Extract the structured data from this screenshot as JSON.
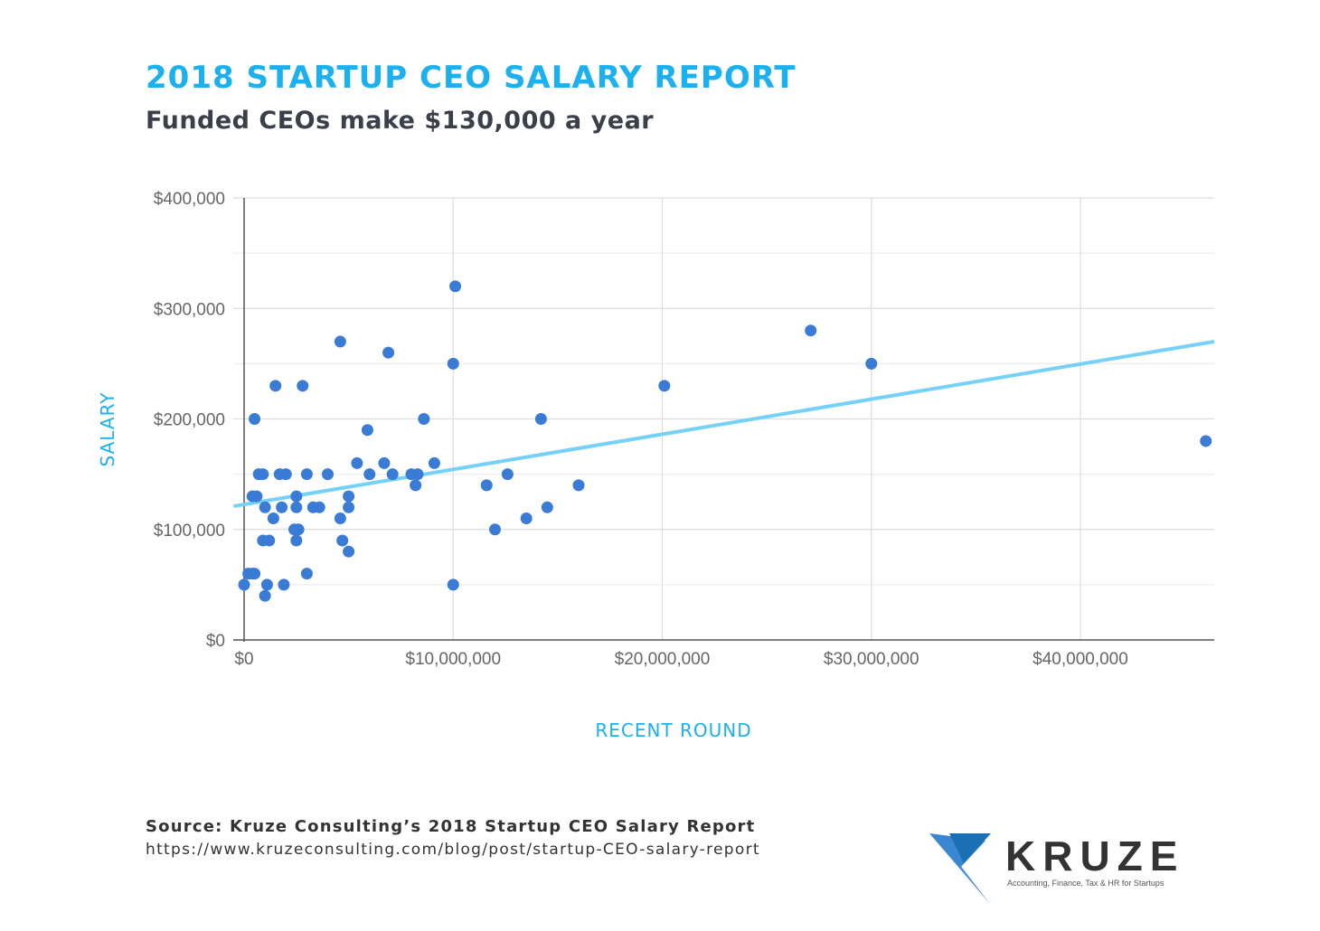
{
  "header": {
    "title": "2018 STARTUP CEO SALARY REPORT",
    "subtitle": "Funded CEOs make $130,000 a year"
  },
  "chart_data": {
    "type": "scatter",
    "xlabel": "RECENT ROUND",
    "ylabel": "SALARY",
    "xlim": [
      -500000,
      46400000
    ],
    "ylim": [
      0,
      400000
    ],
    "x_ticks": [
      0,
      10000000,
      20000000,
      30000000,
      40000000
    ],
    "x_tick_labels": [
      "$0",
      "$10,000,000",
      "$20,000,000",
      "$30,000,000",
      "$40,000,000"
    ],
    "y_ticks": [
      0,
      100000,
      200000,
      300000,
      400000
    ],
    "y_tick_labels": [
      "$0",
      "$100,000",
      "$200,000",
      "$300,000",
      "$400,000"
    ],
    "grid": true,
    "point_color": "#3a7bd5",
    "trend_color": "#76d1f7",
    "trendline": {
      "x": [
        -500000,
        46400000
      ],
      "y": [
        121000,
        270000
      ]
    },
    "points": [
      [
        0,
        50000
      ],
      [
        200000,
        60000
      ],
      [
        400000,
        60000
      ],
      [
        500000,
        60000
      ],
      [
        500000,
        200000
      ],
      [
        400000,
        130000
      ],
      [
        600000,
        130000
      ],
      [
        700000,
        150000
      ],
      [
        900000,
        150000
      ],
      [
        1000000,
        120000
      ],
      [
        900000,
        90000
      ],
      [
        1200000,
        90000
      ],
      [
        1000000,
        40000
      ],
      [
        1100000,
        50000
      ],
      [
        1400000,
        110000
      ],
      [
        1500000,
        230000
      ],
      [
        1700000,
        150000
      ],
      [
        2000000,
        150000
      ],
      [
        1800000,
        120000
      ],
      [
        1900000,
        50000
      ],
      [
        2500000,
        130000
      ],
      [
        2500000,
        120000
      ],
      [
        2400000,
        100000
      ],
      [
        2600000,
        100000
      ],
      [
        2500000,
        90000
      ],
      [
        2800000,
        230000
      ],
      [
        3000000,
        150000
      ],
      [
        3000000,
        60000
      ],
      [
        3300000,
        120000
      ],
      [
        3600000,
        120000
      ],
      [
        4000000,
        150000
      ],
      [
        4600000,
        270000
      ],
      [
        4600000,
        110000
      ],
      [
        4700000,
        90000
      ],
      [
        5000000,
        130000
      ],
      [
        5000000,
        120000
      ],
      [
        5000000,
        80000
      ],
      [
        5400000,
        160000
      ],
      [
        5900000,
        190000
      ],
      [
        6000000,
        150000
      ],
      [
        6700000,
        160000
      ],
      [
        6900000,
        260000
      ],
      [
        7100000,
        150000
      ],
      [
        8000000,
        150000
      ],
      [
        8300000,
        150000
      ],
      [
        8200000,
        140000
      ],
      [
        8600000,
        200000
      ],
      [
        9100000,
        160000
      ],
      [
        10000000,
        250000
      ],
      [
        10100000,
        320000
      ],
      [
        10000000,
        50000
      ],
      [
        11600000,
        140000
      ],
      [
        12000000,
        100000
      ],
      [
        12600000,
        150000
      ],
      [
        13500000,
        110000
      ],
      [
        14200000,
        200000
      ],
      [
        14500000,
        120000
      ],
      [
        16000000,
        140000
      ],
      [
        20100000,
        230000
      ],
      [
        27100000,
        280000
      ],
      [
        30000000,
        250000
      ],
      [
        46000000,
        180000
      ]
    ]
  },
  "footer": {
    "source": "Source: Kruze Consulting’s 2018 Startup CEO Salary Report",
    "url": "https://www.kruzeconsulting.com/blog/post/startup-CEO-salary-report"
  },
  "logo": {
    "name": "KRUZE",
    "tagline": "Accounting, Finance, Tax & HR for Startups"
  }
}
